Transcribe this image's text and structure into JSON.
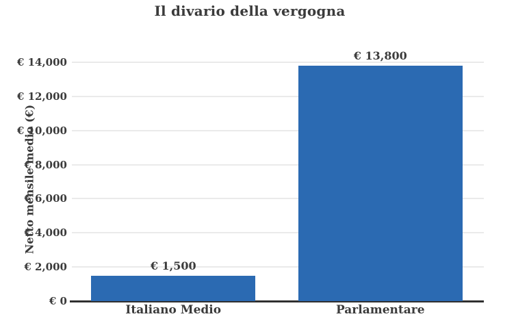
{
  "chart_data": {
    "type": "bar",
    "title": "Il divario della vergogna",
    "xlabel": "",
    "ylabel": "Netto mensile medio (€)",
    "categories": [
      "Italiano Medio",
      "Parlamentare"
    ],
    "values": [
      1500,
      13800
    ],
    "value_labels": [
      "€ 1,500",
      "€ 13,800"
    ],
    "ylim": [
      0,
      14000
    ],
    "yticks": [
      {
        "value": 0,
        "label": "€ 0"
      },
      {
        "value": 2000,
        "label": "€ 2,000"
      },
      {
        "value": 4000,
        "label": "€ 4,000"
      },
      {
        "value": 6000,
        "label": "€ 6,000"
      },
      {
        "value": 8000,
        "label": "€ 8,000"
      },
      {
        "value": 10000,
        "label": "€ 10,000"
      },
      {
        "value": 12000,
        "label": "€ 12,000"
      },
      {
        "value": 14000,
        "label": "€ 14,000"
      }
    ],
    "grid": "horizontal",
    "legend": "none",
    "colors": {
      "bar": "#2b6ab2",
      "text": "#3b3b3b",
      "gridline": "#eaeaea",
      "axis_line": "#2f2f2f",
      "background": "#ffffff"
    }
  }
}
